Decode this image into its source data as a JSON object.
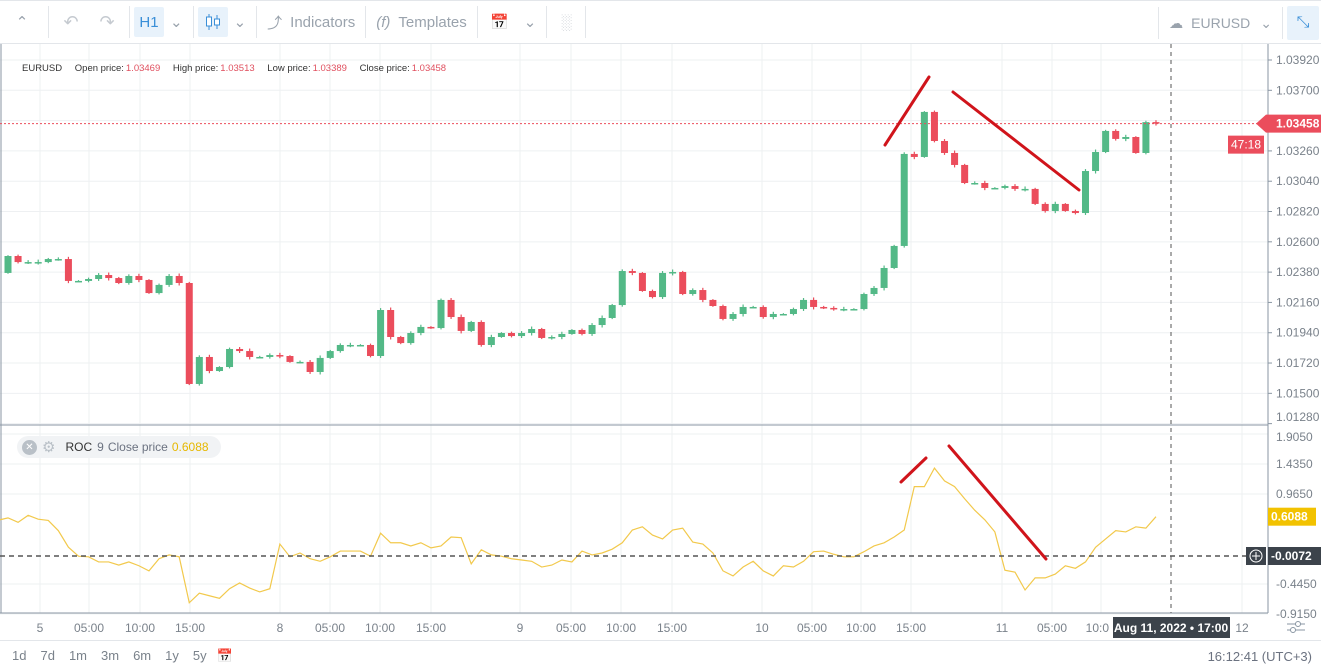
{
  "toolbar": {
    "timeframe": "H1",
    "indicators": "Indicators",
    "templates": "Templates",
    "symbol": "EURUSD"
  },
  "legend": {
    "symbol": "EURUSD",
    "open_label": "Open price:",
    "open": "1.03469",
    "high_label": "High price:",
    "high": "1.03513",
    "low_label": "Low price:",
    "low": "1.03389",
    "close_label": "Close price:",
    "close": "1.03458"
  },
  "roc_legend": {
    "name": "ROC",
    "period": "9",
    "source": "Close price",
    "value": "0.6088"
  },
  "price_axis": {
    "ticks": [
      "1.03920",
      "1.03700",
      "1.03260",
      "1.03040",
      "1.02820",
      "1.02600",
      "1.02380",
      "1.02160",
      "1.01940",
      "1.01720",
      "1.01500",
      "1.01280"
    ],
    "last_price": "1.03458",
    "countdown": "47:18"
  },
  "roc_axis": {
    "ticks": [
      "1.9050",
      "1.4350",
      "0.9650",
      "-0.4450",
      "-0.9150"
    ],
    "last_value": "0.6088",
    "crosshair_value": "-0.0072"
  },
  "time_axis": {
    "ticks": [
      "5",
      "05:00",
      "10:00",
      "15:00",
      "8",
      "05:00",
      "10:00",
      "15:00",
      "9",
      "05:00",
      "10:00",
      "15:00",
      "10",
      "05:00",
      "10:00",
      "15:00",
      "11",
      "05:00",
      "10:0",
      "12"
    ],
    "crosshair_label": "Aug 11, 2022 • 17:00"
  },
  "ranges": [
    "1d",
    "7d",
    "1m",
    "3m",
    "6m",
    "1y",
    "5y"
  ],
  "clock": "16:12:41 (UTC+3)",
  "colors": {
    "up": "#53b987",
    "down": "#eb4d5c",
    "roc": "#f2c94c",
    "accent": "#3a8fd8",
    "annotation": "#d0141b"
  },
  "chart_data": [
    {
      "type": "candlestick",
      "symbol": "EURUSD",
      "timeframe": "H1",
      "first_open": 1.02374,
      "closes": [
        1.02497,
        1.02453,
        1.02453,
        1.02453,
        1.02475,
        1.02475,
        1.02316,
        1.02316,
        1.0233,
        1.02359,
        1.02337,
        1.02301,
        1.02352,
        1.02323,
        1.02228,
        1.02287,
        1.02352,
        1.02301,
        1.01568,
        1.01764,
        1.01662,
        1.01691,
        1.01822,
        1.01807,
        1.01764,
        1.01764,
        1.01778,
        1.01771,
        1.01728,
        1.01728,
        1.01655,
        1.01757,
        1.01807,
        1.01851,
        1.01851,
        1.01851,
        1.01771,
        1.02105,
        1.01909,
        1.01865,
        1.01938,
        1.01982,
        1.01974,
        1.02178,
        1.02054,
        1.01953,
        1.02018,
        1.01851,
        1.01909,
        1.01938,
        1.01916,
        1.01938,
        1.01967,
        1.01902,
        1.01909,
        1.01931,
        1.0196,
        1.01931,
        1.01996,
        1.02047,
        1.02141,
        1.02388,
        1.02374,
        1.02243,
        1.02199,
        1.02374,
        1.02381,
        1.02221,
        1.0225,
        1.02178,
        1.02134,
        1.0204,
        1.02076,
        1.02127,
        1.02127,
        1.02054,
        1.02076,
        1.02076,
        1.02112,
        1.02178,
        1.02127,
        1.0212,
        1.02112,
        1.02112,
        1.02112,
        1.02221,
        1.02265,
        1.0241,
        1.0257,
        1.03238,
        1.03216,
        1.03543,
        1.03332,
        1.03245,
        1.03158,
        1.03027,
        1.03027,
        1.02991,
        1.02991,
        1.03005,
        1.02984,
        1.02984,
        1.02875,
        1.02824,
        1.02875,
        1.02824,
        1.02809,
        1.03114,
        1.03252,
        1.03405,
        1.03347,
        1.03361,
        1.03245,
        1.03469,
        1.03458
      ],
      "ylim": [
        1.0128,
        1.0401
      ]
    },
    {
      "type": "line",
      "name": "ROC",
      "ylim": [
        -1.05,
        2.0
      ],
      "values": [
        0.59,
        0.52,
        0.63,
        0.57,
        0.55,
        0.39,
        0.13,
        -0.01,
        -0.02,
        -0.1,
        -0.1,
        -0.15,
        -0.1,
        -0.16,
        -0.24,
        -0.05,
        0.01,
        -0.02,
        -0.74,
        -0.59,
        -0.63,
        -0.67,
        -0.52,
        -0.43,
        -0.51,
        -0.57,
        -0.52,
        0.18,
        -0.02,
        0.04,
        -0.05,
        -0.09,
        -0.02,
        0.07,
        0.07,
        0.07,
        -0.01,
        0.35,
        0.2,
        0.2,
        0.15,
        0.2,
        0.12,
        0.15,
        0.29,
        0.28,
        -0.13,
        0.09,
        0.01,
        -0.01,
        -0.05,
        -0.07,
        -0.09,
        -0.18,
        -0.15,
        -0.07,
        -0.1,
        0.07,
        0.01,
        0.04,
        0.1,
        0.2,
        0.4,
        0.45,
        0.32,
        0.26,
        0.4,
        0.43,
        0.21,
        0.18,
        0.04,
        -0.24,
        -0.32,
        -0.18,
        -0.09,
        -0.24,
        -0.32,
        -0.16,
        -0.18,
        -0.09,
        0.06,
        0.07,
        0.02,
        -0.02,
        -0.02,
        0.06,
        0.15,
        0.2,
        0.29,
        0.4,
        1.08,
        1.08,
        1.37,
        1.17,
        1.08,
        0.89,
        0.71,
        0.56,
        0.37,
        -0.23,
        -0.26,
        -0.54,
        -0.35,
        -0.35,
        -0.29,
        -0.16,
        -0.2,
        -0.1,
        0.13,
        0.26,
        0.39,
        0.37,
        0.45,
        0.43,
        0.6088
      ],
      "reference_level": -0.0072
    }
  ]
}
